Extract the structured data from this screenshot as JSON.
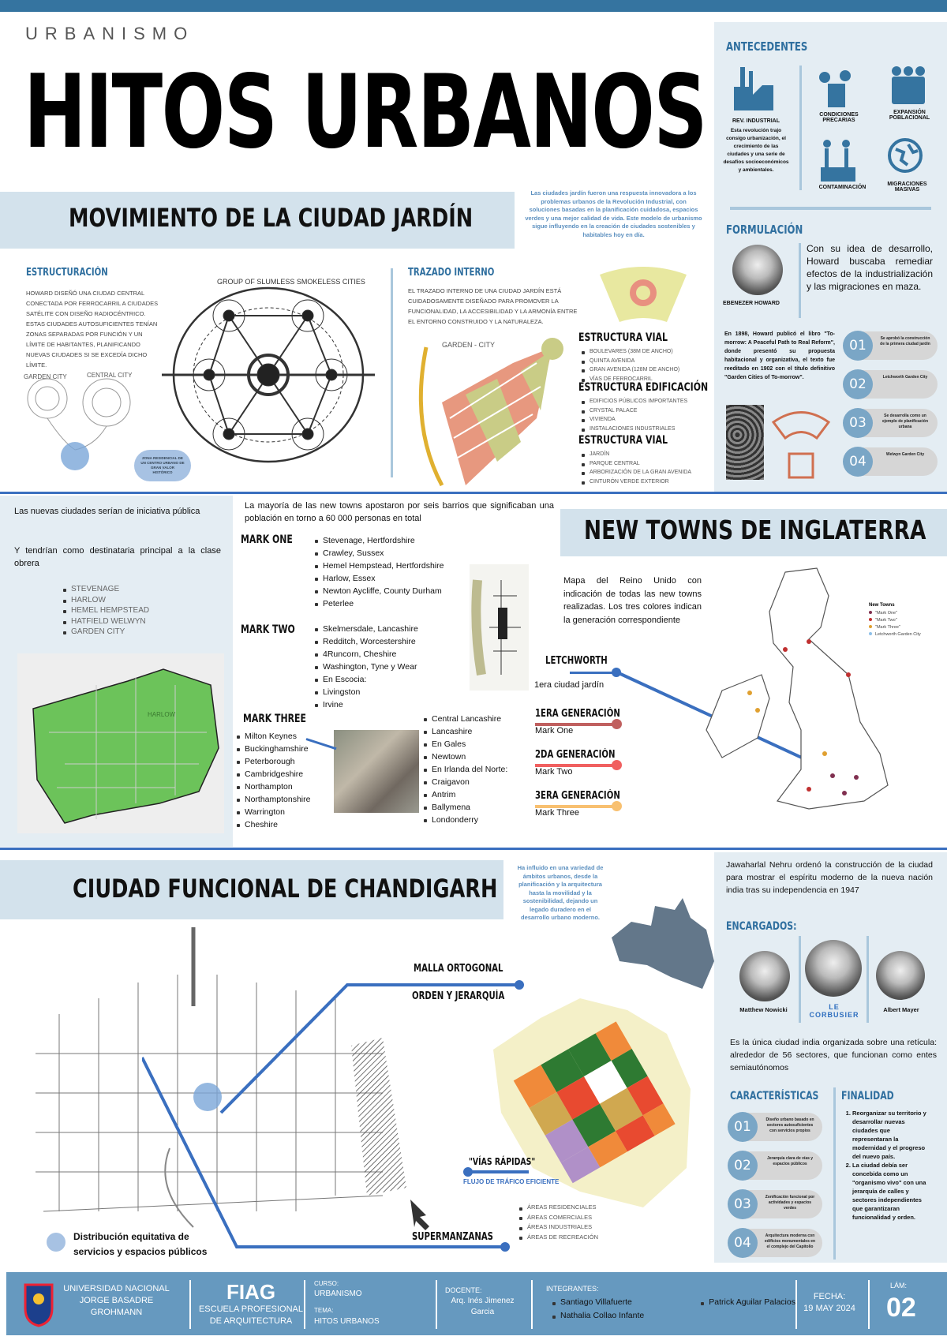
{
  "header": {
    "kicker": "URBANISMO",
    "title": "HITOS URBANOS"
  },
  "colors": {
    "primary": "#3574a0",
    "panel": "#e4edf3",
    "banner": "#d3e2ec",
    "footer": "#6699bf",
    "mark_one": "#c0605f",
    "mark_two": "#f06060",
    "mark_three": "#f8c070",
    "connector": "#3a6fbf"
  },
  "garden_city": {
    "banner": "MOVIMIENTO DE LA CIUDAD JARDÍN",
    "intro": "Las ciudades jardín fueron una respuesta innovadora a los problemas urbanos de la Revolución Industrial, con soluciones basadas en la planificación cuidadosa, espacios verdes y una mejor calidad de vida. Este modelo de urbanismo sigue influyendo en la creación de ciudades sostenibles y habitables hoy en día.",
    "estructuracion": {
      "heading": "ESTRUCTURACIÓN",
      "text": "HOWARD DISEÑÓ UNA CIUDAD CENTRAL CONECTADA POR FERROCARRIL A CIUDADES SATÉLITE CON DISEÑO RADIOCÉNTRICO. ESTAS CIUDADES AUTOSUFICIENTES TENÍAN ZONAS SEPARADAS POR FUNCIÓN Y UN LÍMITE DE HABITANTES, PLANIFICANDO NUEVAS CIUDADES SI SE EXCEDÍA DICHO LÍMITE.",
      "diagram_labels": {
        "garden": "GARDEN CITY",
        "central": "CENTRAL CITY",
        "group": "GROUP OF SLUMLESS SMOKELESS CITIES"
      },
      "bubble": "ZONA RESIDENCIAL DE UN CENTRO URBANO DE GRAN VALOR HISTÓRICO"
    },
    "trazado": {
      "heading": "TRAZADO INTERNO",
      "text": "EL TRAZADO INTERNO DE UNA CIUDAD JARDÍN ESTÁ CUIDADOSAMENTE DISEÑADO PARA PROMOVER LA FUNCIONALIDAD, LA ACCESIBILIDAD Y LA ARMONÍA ENTRE EL ENTORNO CONSTRUIDO Y LA NATURALEZA.",
      "plan_label": "GARDEN - CITY",
      "groups": [
        {
          "title": "ESTRUCTURA VIAL",
          "items": [
            "BOULEVARES (38M DE ANCHO)",
            "QUINTA AVENIDA",
            "GRAN AVENIDA (128M DE ANCHO)",
            "VÍAS DE FERROCARRIL"
          ]
        },
        {
          "title": "ESTRUCTURA EDIFICACIÓN",
          "items": [
            "EDIFICIOS PÚBLICOS IMPORTANTES",
            "CRYSTAL PALACE",
            "VIVIENDA",
            "INSTALACIONES INDUSTRIALES"
          ]
        },
        {
          "title": "ESTRUCTURA VIAL",
          "items": [
            "JARDÍN",
            "PARQUE CENTRAL",
            "ARBORIZACIÓN DE LA GRAN AVENIDA",
            "CINTURÓN VERDE EXTERIOR"
          ]
        }
      ]
    }
  },
  "antecedentes": {
    "heading": "ANTECEDENTES",
    "rev_title": "REV. INDUSTRIAL",
    "rev_text": "Esta revolución trajo consigo urbanización, el crecimiento de las ciudades y una serie de desafíos socioeconómicos y ambientales.",
    "items": [
      {
        "label": "CONDICIONES PRECARIAS",
        "icon": "smoke-person-icon"
      },
      {
        "label": "EXPANSIÓN POBLACIONAL",
        "icon": "people-icon"
      },
      {
        "label": "CONTAMINACIÓN",
        "icon": "factory-smoke-icon"
      },
      {
        "label": "MIGRACIONES MASIVAS",
        "icon": "globe-icon"
      }
    ]
  },
  "formulacion": {
    "heading": "FORMULACIÓN",
    "person": "EBENEZER HOWARD",
    "quote": "Con su idea de desarrollo, Howard buscaba remediar efectos de la industrialización y las migraciones en maza.",
    "text": "En 1898, Howard publicó el libro \"To-morrow: A Peaceful Path to Real Reform\", donde presentó su propuesta habitacional y organizativa, el texto fue reeditado en 1902 con el título definitivo \"Garden Cities of To-morrow\".",
    "pills": [
      {
        "n": "01",
        "t": "Se aprobó la construcción de la primera ciudad jardín"
      },
      {
        "n": "02",
        "t": "Letchworth Garden City"
      },
      {
        "n": "03",
        "t": "Se desarrolla como un ejemplo de planificación urbana"
      },
      {
        "n": "04",
        "t": "Welwyn Garden City"
      }
    ]
  },
  "new_towns": {
    "banner": "NEW TOWNS DE INGLATERRA",
    "left_text_1": "Las nuevas ciudades serían de iniciativa pública",
    "left_text_2": "Y tendrían como destinataria principal a la clase obrera",
    "left_list": [
      "STEVENAGE",
      "HARLOW",
      "HEMEL HEMPSTEAD",
      "HATFIELD WELWYN",
      "GARDEN CITY"
    ],
    "map_label": "HARLOW",
    "intro": "La mayoría de las new towns apostaron por seis barrios que significaban una población en torno a 60 000 personas en total",
    "mark_one": {
      "title": "MARK ONE",
      "items": [
        "Stevenage, Hertfordshire",
        "Crawley, Sussex",
        "Hemel Hempstead, Hertfordshire",
        "Harlow, Essex",
        "Newton Aycliffe, County Durham",
        "Peterlee"
      ]
    },
    "mark_two": {
      "title": "MARK TWO",
      "items": [
        "Skelmersdale, Lancashire",
        "Redditch, Worcestershire",
        "4Runcorn, Cheshire",
        "Washington, Tyne y Wear",
        "En Escocia:",
        "Livingston",
        "Irvine"
      ]
    },
    "mark_three": {
      "title": "MARK THREE",
      "items": [
        "Milton Keynes",
        "Buckinghamshire",
        "Peterborough",
        "Cambridgeshire",
        "Northampton",
        "Northamptonshire",
        "Warrington",
        "Cheshire"
      ],
      "items_2": [
        "Central Lancashire",
        "Lancashire",
        "En Gales",
        "Newtown",
        "En Irlanda del Norte:",
        "Craigavon",
        "Antrim",
        "Ballymena",
        "Londonderry"
      ]
    },
    "map_caption": "Mapa del Reino Unido con indicación de todas las new towns realizadas. Los tres colores indican la generación correspondiente",
    "letchworth": {
      "title": "LETCHWORTH",
      "sub": "1era ciudad jardín"
    },
    "generations": [
      {
        "title": "1ERA GENERACIÓN",
        "sub": "Mark One"
      },
      {
        "title": "2DA GENERACIÓN",
        "sub": "Mark Two"
      },
      {
        "title": "3ERA GENERACIÓN",
        "sub": "Mark Three"
      }
    ],
    "legend": {
      "title": "New Towns",
      "items": [
        "\"Mark One\"",
        "\"Mark Two\"",
        "\"Mark Three\"",
        "Letchworth Garden City"
      ]
    }
  },
  "chandigarh": {
    "banner": "CIUDAD FUNCIONAL DE CHANDIGARH",
    "intro": "Ha influido en una variedad de ámbitos urbanos, desde la planificación y la arquitectura hasta la movilidad y la sostenibilidad, dejando un legado duradero en el desarrollo urbano moderno.",
    "labels": {
      "malla": "MALLA ORTOGONAL",
      "orden": "ORDEN Y JERARQUÍA",
      "vias": "\"VÍAS RÁPIDAS\"",
      "flujo": "FLUJO DE TRÁFICO EFICIENTE",
      "super": "SUPERMANZANAS",
      "distribucion": "Distribución equitativa de servicios y espacios públicos"
    },
    "areas": [
      "ÁREAS RESIDENCIALES",
      "ÁREAS COMERCIALES",
      "ÁREAS INDUSTRIALES",
      "ÁREAS DE RECREACIÓN"
    ],
    "nehru": "Jawaharlal Nehru ordenó la construcción de la ciudad para mostrar el espíritu moderno de la nueva nación india tras su independencia en 1947",
    "encargados": {
      "heading": "ENCARGADOS:",
      "people": [
        "Matthew Nowicki",
        "LE CORBUSIER",
        "Albert Mayer"
      ]
    },
    "grid_text": "Es la única ciudad india organizada sobre una retícula: alrededor de 56 sectores, que funcionan como entes semiautónomos",
    "caracteristicas": {
      "heading": "CARACTERÍSTICAS",
      "pills": [
        {
          "n": "01",
          "t": "Diseño urbano basado en sectores autosuficientes con servicios propios"
        },
        {
          "n": "02",
          "t": "Jerarquía clara de vías y espacios públicos"
        },
        {
          "n": "03",
          "t": "Zonificación funcional por actividades y espacios verdes"
        },
        {
          "n": "04",
          "t": "Arquitectura moderna con edificios monumentales en el complejo del Capitolio"
        }
      ]
    },
    "finalidad": {
      "heading": "FINALIDAD",
      "items": [
        "Reorganizar su territorio y desarrollar nuevas ciudades que representaran la modernidad y el progreso del nuevo país.",
        "La ciudad debía ser concebida como un \"organismo vivo\" con una jerarquía de calles y sectores independientes que garantizaran funcionalidad y orden."
      ]
    }
  },
  "footer": {
    "university": "UNIVERSIDAD NACIONAL JORGE BASADRE GROHMANN",
    "faculty": "FIAG",
    "school": "ESCUELA PROFESIONAL DE ARQUITECTURA",
    "curso_label": "CURSO:",
    "curso": "URBANISMO",
    "tema_label": "TEMA:",
    "tema": "HITOS URBANOS",
    "docente_label": "DOCENTE:",
    "docente": "Arq. Inés Jimenez Garcia",
    "integrantes_label": "INTEGRANTES:",
    "integrantes": [
      "Santiago Villafuerte",
      "Nathalia Collao Infante",
      "Patrick Aguilar Palacios"
    ],
    "fecha_label": "FECHA:",
    "fecha": "19 MAY 2024",
    "lam_label": "LÁM:",
    "lam": "02"
  }
}
